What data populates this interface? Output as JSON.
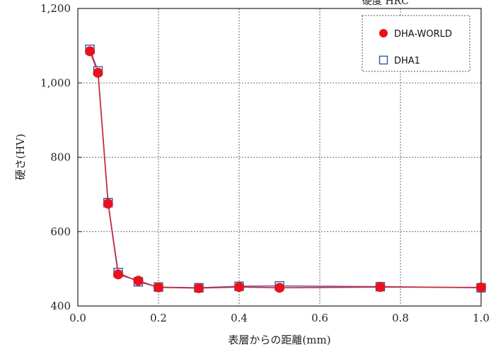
{
  "corner_note": "硬度 HRC",
  "chart_data": {
    "type": "line",
    "title": "",
    "xlabel": "表層からの距離(mm)",
    "ylabel": "硬さ(HV)",
    "xlim": [
      0.0,
      1.0
    ],
    "ylim": [
      400,
      1200
    ],
    "x_ticks": [
      "0.0",
      "0.2",
      "0.4",
      "0.6",
      "0.8",
      "1.0"
    ],
    "y_ticks": [
      "400",
      "600",
      "800",
      "1,000",
      "1,200"
    ],
    "grid": true,
    "legend_position": "top-right",
    "series": [
      {
        "name": "DHA-WORLD",
        "marker": "filled-circle",
        "color": "#e8121e",
        "line_color": "#cc2a3a",
        "x": [
          0.03,
          0.05,
          0.075,
          0.1,
          0.15,
          0.2,
          0.3,
          0.4,
          0.5,
          0.75,
          1.0
        ],
        "y": [
          1085,
          1027,
          675,
          485,
          468,
          450,
          448,
          451,
          449,
          451,
          450
        ]
      },
      {
        "name": "DHA1",
        "marker": "open-square",
        "color": "#3a55a0",
        "line_color": "#6a5aa8",
        "x": [
          0.03,
          0.05,
          0.075,
          0.1,
          0.15,
          0.2,
          0.3,
          0.4,
          0.5,
          0.75,
          1.0
        ],
        "y": [
          1090,
          1032,
          678,
          490,
          465,
          451,
          449,
          453,
          454,
          452,
          449
        ]
      }
    ]
  }
}
